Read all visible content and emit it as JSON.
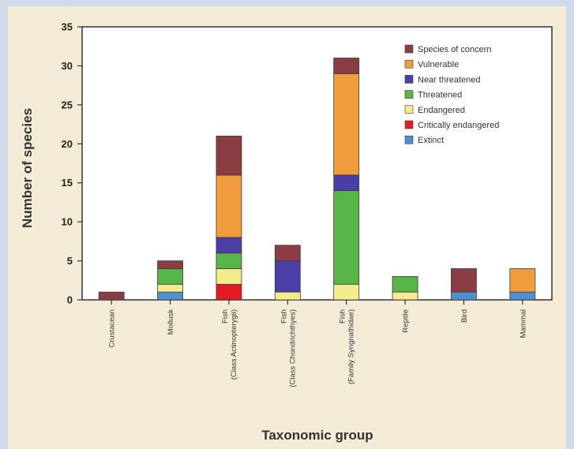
{
  "chart_data": {
    "type": "bar",
    "stacked": true,
    "title": "",
    "xlabel": "Taxonomic group",
    "ylabel": "Number of species",
    "ylim": [
      0,
      35
    ],
    "yticks": [
      0,
      5,
      10,
      15,
      20,
      25,
      30,
      35
    ],
    "grid": false,
    "legend_position": "top-right",
    "categories": [
      [
        "Crustacean"
      ],
      [
        "Mollusk"
      ],
      [
        "Fish",
        "(Class Actinopterygii)"
      ],
      [
        "Fish",
        "(Class Chondrichthyes)"
      ],
      [
        "Fish",
        "(Family Syngnathidae)"
      ],
      [
        "Reptile"
      ],
      [
        "Bird"
      ],
      [
        "Mammal"
      ]
    ],
    "series": [
      {
        "name": "Extinct",
        "color": "#4f8fd2",
        "values": [
          0,
          1,
          0,
          0,
          0,
          0,
          1,
          1
        ]
      },
      {
        "name": "Critically endangered",
        "color": "#e21c22",
        "values": [
          0,
          0,
          2,
          0,
          0,
          0,
          0,
          0
        ]
      },
      {
        "name": "Endangered",
        "color": "#f4ec8c",
        "values": [
          0,
          1,
          2,
          1,
          2,
          1,
          0,
          0
        ]
      },
      {
        "name": "Threatened",
        "color": "#58b548",
        "values": [
          0,
          2,
          2,
          0,
          12,
          2,
          0,
          0
        ]
      },
      {
        "name": "Near threatened",
        "color": "#4b3fa7",
        "values": [
          0,
          0,
          2,
          4,
          2,
          0,
          0,
          0
        ]
      },
      {
        "name": "Vulnerable",
        "color": "#f29d3d",
        "values": [
          0,
          0,
          8,
          0,
          13,
          0,
          0,
          3
        ]
      },
      {
        "name": "Species of concern",
        "color": "#8a3d43",
        "values": [
          1,
          1,
          5,
          2,
          2,
          0,
          3,
          0
        ]
      }
    ]
  }
}
